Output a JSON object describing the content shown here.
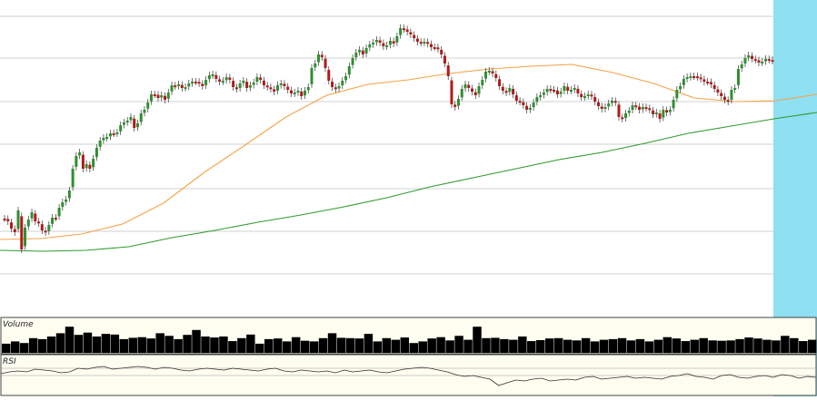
{
  "chart_data": {
    "type": "candlestick",
    "x_axis_labels": "none",
    "y_axis_labels": "none",
    "grid": "horizontal",
    "highlight_region": {
      "x_range": [
        847,
        899
      ],
      "color": "#8ee0f2"
    },
    "series": [
      {
        "name": "",
        "kind": "ohlc",
        "colors": {
          "up": "#2f8f2f",
          "down": "#b01a1a"
        },
        "values": [
          [
            241,
            244,
            252,
            256,
            232,
            275,
            251,
            242,
            234,
            244,
            246,
            254,
            256,
            248,
            240,
            240,
            229
          ],
          [
            223,
            220,
            210,
            186,
            172,
            168,
            186,
            181,
            186,
            175,
            163,
            155,
            152,
            151,
            147,
            147,
            146
          ],
          [
            138,
            135,
            133,
            129,
            141,
            136,
            125,
            121,
            113,
            104,
            104,
            108,
            105,
            110,
            102,
            94,
            95
          ],
          [
            93,
            97,
            96,
            92,
            90,
            90,
            92,
            95,
            88,
            83,
            82,
            87,
            90,
            89,
            85,
            88,
            96
          ],
          [
            98,
            92,
            89,
            97,
            94,
            91,
            85,
            88,
            94,
            96,
            98,
            101,
            94,
            92,
            95,
            99,
            103
          ],
          [
            102,
            100,
            106,
            100,
            96,
            75,
            70,
            60,
            63,
            75,
            89,
            96,
            98,
            95,
            89,
            84,
            73
          ],
          [
            64,
            58,
            55,
            60,
            53,
            49,
            47,
            44,
            47,
            51,
            50,
            45,
            48,
            40,
            31,
            32,
            35
          ],
          [
            38,
            42,
            46,
            47,
            46,
            48,
            52,
            52,
            54,
            60,
            70,
            84,
            115,
            118,
            109,
            98,
            93
          ],
          [
            97,
            101,
            105,
            95,
            88,
            79,
            78,
            81,
            86,
            95,
            100,
            102,
            97,
            104,
            111,
            112,
            116
          ],
          [
            121,
            119,
            113,
            107,
            105,
            102,
            98,
            99,
            99,
            104,
            101,
            95,
            100,
            99,
            97,
            103,
            107
          ],
          [
            106,
            104,
            106,
            112,
            117,
            120,
            118,
            114,
            111,
            113,
            129,
            131,
            125,
            122,
            116,
            117,
            121
          ],
          [
            118,
            119,
            121,
            126,
            124,
            131,
            121,
            124,
            121,
            110,
            99,
            95,
            87,
            85,
            84,
            84,
            85
          ],
          [
            87,
            90,
            90,
            93,
            98,
            102,
            106,
            110,
            112,
            99,
            97,
            76,
            71,
            64,
            61,
            65,
            66
          ],
          [
            69,
            68,
            65,
            66,
            67
          ]
        ]
      },
      {
        "name": "",
        "kind": "moving_average",
        "color": "#f5a347",
        "values": [
          264,
          263,
          258,
          247,
          224,
          190,
          160,
          129,
          105,
          93,
          88,
          81,
          76,
          73,
          71,
          80,
          92,
          108,
          112,
          111,
          104
        ]
      },
      {
        "name": "",
        "kind": "moving_average",
        "color": "#2e9b2e",
        "values": [
          276,
          277,
          276,
          272,
          262,
          254,
          245,
          237,
          228,
          218,
          206,
          196,
          186,
          176,
          168,
          158,
          147,
          139,
          131,
          124
        ]
      }
    ],
    "panels": [
      {
        "label": "Volume",
        "type": "bar",
        "color": "#000000",
        "values": [
          0.28,
          0.35,
          0.3,
          0.45,
          0.42,
          0.5,
          0.6,
          0.8,
          0.55,
          0.62,
          0.5,
          0.58,
          0.56,
          0.42,
          0.46,
          0.48,
          0.44,
          0.6,
          0.52,
          0.42,
          0.55,
          0.7,
          0.5,
          0.47,
          0.5,
          0.36,
          0.45,
          0.56,
          0.28,
          0.42,
          0.44,
          0.35,
          0.48,
          0.37,
          0.35,
          0.45,
          0.6,
          0.46,
          0.45,
          0.44,
          0.58,
          0.35,
          0.45,
          0.4,
          0.47,
          0.3,
          0.35,
          0.44,
          0.48,
          0.38,
          0.52,
          0.4,
          0.8,
          0.45,
          0.46,
          0.42,
          0.4,
          0.5,
          0.36,
          0.39,
          0.44,
          0.45,
          0.4,
          0.38,
          0.45,
          0.35,
          0.4,
          0.42,
          0.45,
          0.38,
          0.42,
          0.35,
          0.4,
          0.48,
          0.44,
          0.36,
          0.4,
          0.45,
          0.38,
          0.37,
          0.38,
          0.42,
          0.47,
          0.44,
          0.4,
          0.38,
          0.52,
          0.45,
          0.36,
          0.4
        ]
      },
      {
        "label": "RSI",
        "type": "line",
        "color": "#333333",
        "values": [
          12,
          10,
          9,
          10,
          7,
          8,
          9,
          11,
          10,
          6,
          7,
          5,
          4,
          7,
          6,
          5,
          4,
          5,
          7,
          5,
          6,
          8,
          9,
          7,
          6,
          7,
          8,
          6,
          7,
          8,
          9,
          7,
          6,
          9,
          10,
          8,
          9,
          10,
          9,
          11,
          8,
          10,
          9,
          8,
          10,
          11,
          9,
          7,
          6,
          5,
          6,
          8,
          10,
          13,
          15,
          14,
          16,
          18,
          25,
          22,
          19,
          20,
          18,
          17,
          20,
          19,
          18,
          19,
          16,
          15,
          18,
          17,
          16,
          15,
          17,
          16,
          17,
          18,
          15,
          14,
          12,
          15,
          16,
          18,
          14,
          13,
          16,
          17,
          15,
          14,
          16,
          13,
          14,
          17,
          15,
          16
        ]
      }
    ]
  }
}
